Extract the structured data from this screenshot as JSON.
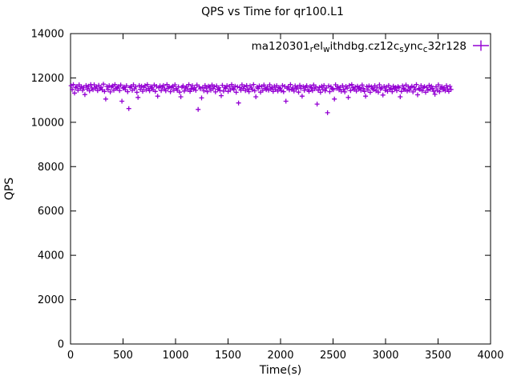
{
  "chart_data": {
    "type": "scatter",
    "title": "QPS vs Time for qr100.L1",
    "xlabel": "Time(s)",
    "ylabel": "QPS",
    "xlim": [
      0,
      4000
    ],
    "ylim": [
      0,
      14000
    ],
    "xticks": [
      0,
      500,
      1000,
      1500,
      2000,
      2500,
      3000,
      3500,
      4000
    ],
    "yticks": [
      0,
      2000,
      4000,
      6000,
      8000,
      10000,
      12000,
      14000
    ],
    "grid": false,
    "legend_position": "top-right-inside",
    "marker": "plus",
    "marker_color": "#9400D3",
    "series": [
      {
        "name": "ma120301_rel_withdbg.cz12c_sync_c32r128",
        "name_segments": [
          {
            "t": "ma120301"
          },
          {
            "t": "r",
            "sub": true
          },
          {
            "t": "el"
          },
          {
            "t": "w",
            "sub": true
          },
          {
            "t": "ithdbg.cz12c"
          },
          {
            "t": "s",
            "sub": true
          },
          {
            "t": "ync"
          },
          {
            "t": "c",
            "sub": true
          },
          {
            "t": "32r128"
          }
        ],
        "x0": 5,
        "dx": 11,
        "y": [
          11650,
          11480,
          11700,
          11320,
          11560,
          11620,
          11450,
          11690,
          11530,
          11610,
          11440,
          11580,
          11250,
          11660,
          11500,
          11630,
          11420,
          11700,
          11550,
          11470,
          11690,
          11540,
          11600,
          11430,
          11670,
          11510,
          11580,
          11460,
          11720,
          11390,
          11050,
          11620,
          11480,
          11650,
          11370,
          11590,
          11640,
          11450,
          11700,
          11520,
          11560,
          11610,
          11430,
          11680,
          10950,
          11540,
          11590,
          11470,
          11650,
          11380,
          10620,
          11570,
          11620,
          11440,
          11690,
          11510,
          11600,
          11350,
          11120,
          11660,
          11490,
          11630,
          11400,
          11580,
          11650,
          11460,
          11700,
          11530,
          11420,
          11610,
          11550,
          11470,
          11680,
          11390,
          11620,
          11180,
          11560,
          11640,
          11430,
          11590,
          11660,
          11500,
          11420,
          11700,
          11540,
          11610,
          11380,
          11570,
          11630,
          11450,
          11690,
          11520,
          11440,
          11600,
          11360,
          11150,
          11580,
          11640,
          11410,
          11550,
          11620,
          11470,
          11700,
          11390,
          11530,
          11650,
          11480,
          11560,
          11440,
          11680,
          10580,
          11600,
          11510,
          11100,
          11570,
          11420,
          11660,
          11540,
          11380,
          11630,
          11590,
          11450,
          11680,
          11520,
          11610,
          11370,
          11640,
          11490,
          11560,
          11430,
          11200,
          11670,
          11410,
          11580,
          11530,
          11650,
          11390,
          11620,
          11460,
          11700,
          11540,
          11480,
          11630,
          11350,
          11600,
          10870,
          11570,
          11450,
          11690,
          11520,
          11610,
          11430,
          11660,
          11500,
          11380,
          11640,
          11550,
          11470,
          11700,
          11420,
          11150,
          11590,
          11520,
          11640,
          11360,
          11610,
          11440,
          11680,
          11530,
          11470,
          11600,
          11450,
          11690,
          11510,
          11560,
          11390,
          11630,
          11480,
          11650,
          11410,
          11570,
          11520,
          11430,
          11660,
          11380,
          11620,
          10950,
          11540,
          11600,
          11460,
          11700,
          11480,
          11550,
          11410,
          11640,
          11500,
          11590,
          11360,
          11670,
          11530,
          11180,
          11610,
          11440,
          11580,
          11650,
          11470,
          11390,
          11620,
          11560,
          11430,
          11680,
          11510,
          11600,
          10820,
          11450,
          11570,
          11350,
          11630,
          11490,
          11660,
          11420,
          11550,
          10430,
          11640,
          11380,
          11600,
          11520,
          11470,
          11050,
          11690,
          11530,
          11610,
          11460,
          11580,
          11400,
          11650,
          11490,
          11370,
          11620,
          11540,
          11120,
          11660,
          11430,
          11700,
          11560,
          11480,
          11590,
          11410,
          11630,
          11500,
          11570,
          11440,
          11680,
          11520,
          11390,
          11180,
          11610,
          11460,
          11640,
          11350,
          11600,
          11530,
          11470,
          11650,
          11420,
          11580,
          11360,
          11690,
          11510,
          11550,
          11230,
          11620,
          11450,
          11590,
          11400,
          11660,
          11480,
          11540,
          11380,
          11630,
          11500,
          11570,
          11430,
          11610,
          11560,
          11150,
          11390,
          11640,
          11520,
          11470,
          11680,
          11410,
          11600,
          11450,
          11550,
          11630,
          11370,
          11590,
          11460,
          11700,
          11240,
          11520,
          11480,
          11650,
          11420,
          11560,
          11610,
          11350,
          11580,
          11440,
          11670,
          11490,
          11630,
          11530,
          11400,
          11260,
          11600,
          11450,
          11690,
          11380,
          11540,
          11610,
          11470,
          11560,
          11420,
          11650,
          11500,
          11390,
          11620,
          11480
        ]
      }
    ]
  }
}
